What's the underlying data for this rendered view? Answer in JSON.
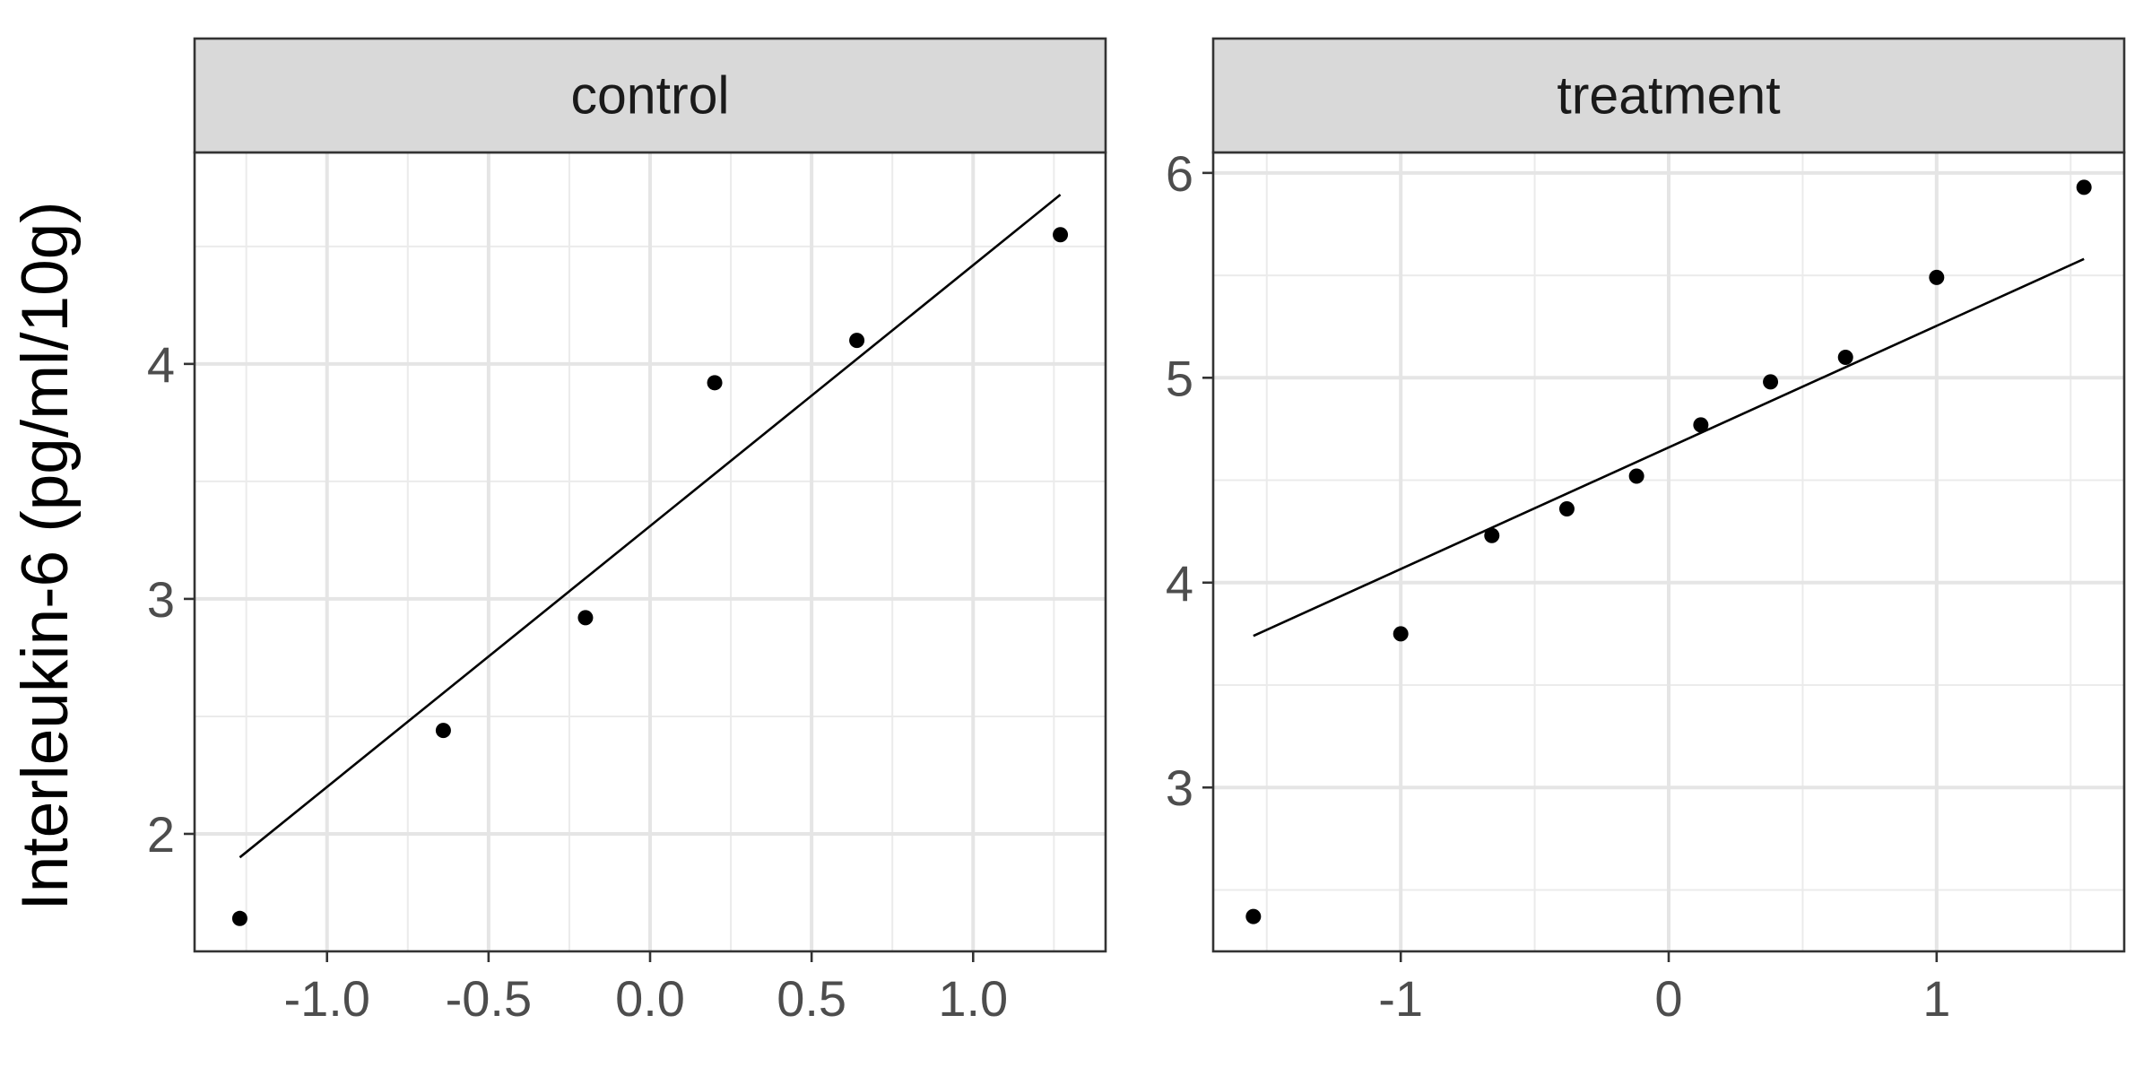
{
  "chart_data": [
    {
      "type": "scatter",
      "facet": "control",
      "ylabel": "Interleukin-6 (pg/ml/10g)",
      "xlabel": "",
      "xlim": [
        -1.41,
        1.41
      ],
      "ylim": [
        1.5,
        4.9
      ],
      "x_ticks": [
        -1.0,
        -0.5,
        0.0,
        0.5,
        1.0
      ],
      "x_tick_labels": [
        "-1.0",
        "-0.5",
        "0.0",
        "0.5",
        "1.0"
      ],
      "y_ticks": [
        2,
        3,
        4
      ],
      "y_tick_labels": [
        "2",
        "3",
        "4"
      ],
      "grid": true,
      "points": [
        {
          "x": -1.27,
          "y": 1.64
        },
        {
          "x": -0.64,
          "y": 2.44
        },
        {
          "x": -0.2,
          "y": 2.92
        },
        {
          "x": 0.2,
          "y": 3.92
        },
        {
          "x": 0.64,
          "y": 4.1
        },
        {
          "x": 1.27,
          "y": 4.55
        }
      ],
      "line": [
        {
          "x": -1.27,
          "y": 1.9
        },
        {
          "x": 1.27,
          "y": 4.72
        }
      ]
    },
    {
      "type": "scatter",
      "facet": "treatment",
      "xlabel": "",
      "xlim": [
        -1.7,
        1.7
      ],
      "ylim": [
        2.2,
        6.1
      ],
      "x_ticks": [
        -1,
        0,
        1
      ],
      "x_tick_labels": [
        "-1",
        "0",
        "1"
      ],
      "y_ticks": [
        3,
        4,
        5,
        6
      ],
      "y_tick_labels": [
        "3",
        "4",
        "5",
        "6"
      ],
      "grid": true,
      "points": [
        {
          "x": -1.55,
          "y": 2.37
        },
        {
          "x": -1.0,
          "y": 3.75
        },
        {
          "x": -0.66,
          "y": 4.23
        },
        {
          "x": -0.38,
          "y": 4.36
        },
        {
          "x": -0.12,
          "y": 4.52
        },
        {
          "x": 0.12,
          "y": 4.77
        },
        {
          "x": 0.38,
          "y": 4.98
        },
        {
          "x": 0.66,
          "y": 5.1
        },
        {
          "x": 1.0,
          "y": 5.49
        },
        {
          "x": 1.55,
          "y": 5.93
        }
      ],
      "line": [
        {
          "x": -1.55,
          "y": 3.74
        },
        {
          "x": 1.55,
          "y": 5.58
        }
      ]
    }
  ]
}
